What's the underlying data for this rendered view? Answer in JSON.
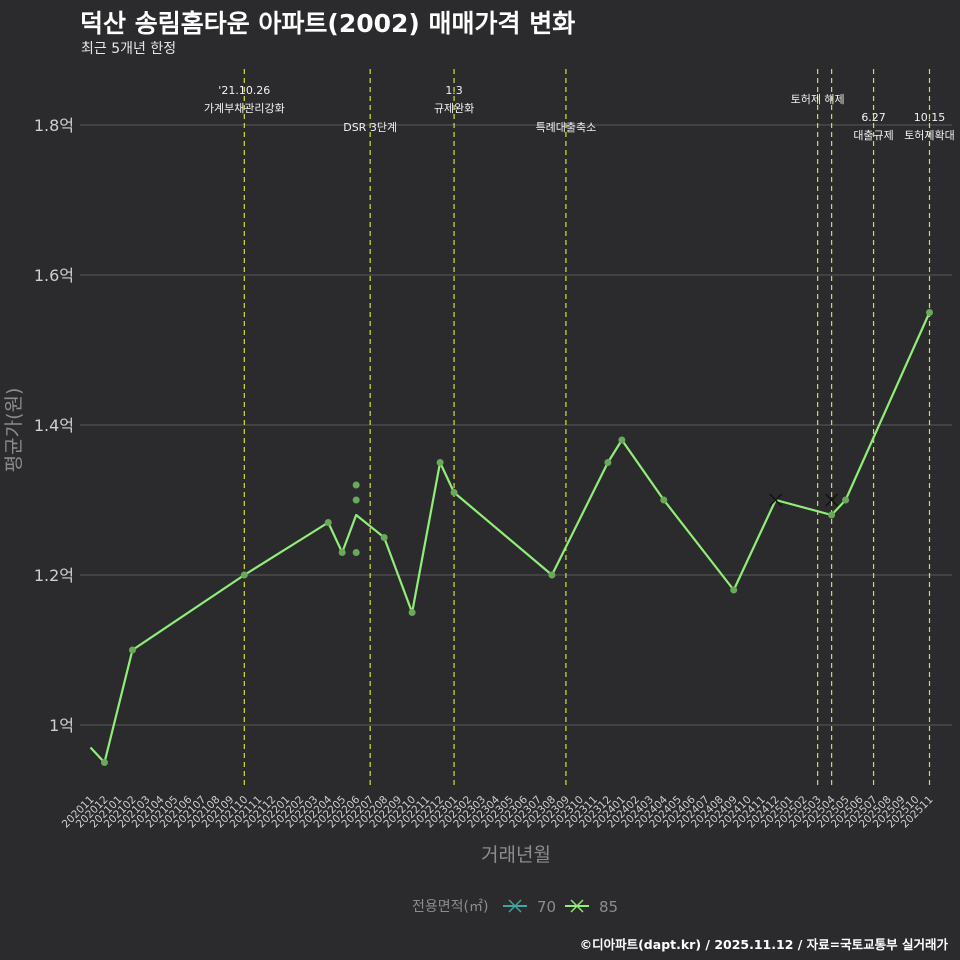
{
  "header": {
    "title": "덕산 송림홈타운 아파트(2002) 매매가격 변화",
    "subtitle": "최근 5개년 한정"
  },
  "footer": {
    "caption": "©디아파트(dapt.kr) / 2025.11.12 / 자료=국토교통부 실거래가"
  },
  "colors": {
    "background": "#2b2b2d",
    "grid": "#5a5a5a",
    "series_70": "#3fa7a0",
    "series_85": "#90ee78",
    "points": "#6aa85a",
    "event_line": "#d4e02e",
    "axis_text": "#cfcfcf",
    "axis_title": "#8c8c8c"
  },
  "chart_data": {
    "type": "line",
    "title": "덕산 송림홈타운 아파트(2002) 매매가격 변화",
    "xlabel": "거래년월",
    "ylabel": "평균가(원)",
    "ylim": [
      0.9,
      1.89
    ],
    "y_ticks": [
      {
        "value": 1.0,
        "label": "1억"
      },
      {
        "value": 1.2,
        "label": "1.2억"
      },
      {
        "value": 1.4,
        "label": "1.4억"
      },
      {
        "value": 1.6,
        "label": "1.6억"
      },
      {
        "value": 1.8,
        "label": "1.8억"
      }
    ],
    "categories": [
      "202011",
      "202012",
      "202101",
      "202102",
      "202103",
      "202104",
      "202105",
      "202106",
      "202107",
      "202108",
      "202109",
      "202110",
      "202111",
      "202112",
      "202201",
      "202202",
      "202203",
      "202204",
      "202205",
      "202206",
      "202207",
      "202208",
      "202209",
      "202210",
      "202211",
      "202212",
      "202301",
      "202302",
      "202303",
      "202304",
      "202305",
      "202306",
      "202307",
      "202308",
      "202309",
      "202310",
      "202311",
      "202312",
      "202401",
      "202402",
      "202403",
      "202404",
      "202405",
      "202406",
      "202407",
      "202408",
      "202409",
      "202410",
      "202411",
      "202412",
      "202501",
      "202502",
      "202503",
      "202504",
      "202505",
      "202506",
      "202507",
      "202508",
      "202509",
      "202510",
      "202511"
    ],
    "series": [
      {
        "name": "85",
        "line": [
          {
            "x": "202011",
            "y": 0.97
          },
          {
            "x": "202012",
            "y": 0.95
          },
          {
            "x": "202102",
            "y": 1.1
          },
          {
            "x": "202110",
            "y": 1.2
          },
          {
            "x": "202204",
            "y": 1.27
          },
          {
            "x": "202205",
            "y": 1.23
          },
          {
            "x": "202206",
            "y": 1.28
          },
          {
            "x": "202208",
            "y": 1.25
          },
          {
            "x": "202210",
            "y": 1.15
          },
          {
            "x": "202212",
            "y": 1.35
          },
          {
            "x": "202301",
            "y": 1.31
          },
          {
            "x": "202308",
            "y": 1.2
          },
          {
            "x": "202312",
            "y": 1.35
          },
          {
            "x": "202401",
            "y": 1.38
          },
          {
            "x": "202404",
            "y": 1.3
          },
          {
            "x": "202409",
            "y": 1.18
          },
          {
            "x": "202412",
            "y": 1.3
          },
          {
            "x": "202504",
            "y": 1.28
          },
          {
            "x": "202505",
            "y": 1.3
          },
          {
            "x": "202511",
            "y": 1.55
          }
        ],
        "points": [
          {
            "x": "202012",
            "y": 0.95
          },
          {
            "x": "202102",
            "y": 1.1
          },
          {
            "x": "202110",
            "y": 1.2
          },
          {
            "x": "202204",
            "y": 1.27
          },
          {
            "x": "202205",
            "y": 1.23
          },
          {
            "x": "202206",
            "y": 1.32
          },
          {
            "x": "202206",
            "y": 1.3
          },
          {
            "x": "202206",
            "y": 1.23
          },
          {
            "x": "202208",
            "y": 1.25
          },
          {
            "x": "202210",
            "y": 1.15
          },
          {
            "x": "202212",
            "y": 1.35
          },
          {
            "x": "202301",
            "y": 1.31
          },
          {
            "x": "202308",
            "y": 1.2
          },
          {
            "x": "202312",
            "y": 1.35
          },
          {
            "x": "202401",
            "y": 1.38
          },
          {
            "x": "202404",
            "y": 1.3
          },
          {
            "x": "202409",
            "y": 1.18
          },
          {
            "x": "202504",
            "y": 1.28
          },
          {
            "x": "202505",
            "y": 1.3
          },
          {
            "x": "202511",
            "y": 1.55
          }
        ],
        "cross_markers": [
          {
            "x": "202412",
            "y": 1.3
          }
        ]
      },
      {
        "name": "70",
        "line": [],
        "points": [],
        "cross_markers": [
          {
            "x": "202504",
            "y": 1.3
          }
        ]
      }
    ],
    "events": [
      {
        "x": "202110",
        "label": "'21.10.26\n가계부채관리강화",
        "level": 1
      },
      {
        "x": "202207",
        "label": "DSR 3단계",
        "level": 3
      },
      {
        "x": "202301",
        "label": "1.3\n규제완화",
        "level": 1
      },
      {
        "x": "202309",
        "label": "특례대출축소",
        "level": 3
      },
      {
        "x": "202503",
        "label": "토허제 해제",
        "level": 2
      },
      {
        "x": "202504",
        "label": "",
        "level": 0
      },
      {
        "x": "202507",
        "label": "6.27\n대출규제",
        "level": 4
      },
      {
        "x": "202511",
        "label": "10.15\n토허제확대",
        "level": 4
      }
    ],
    "legend": {
      "title": "전용면적(㎡)",
      "position": "bottom",
      "items": [
        {
          "name": "70"
        },
        {
          "name": "85"
        }
      ]
    }
  }
}
